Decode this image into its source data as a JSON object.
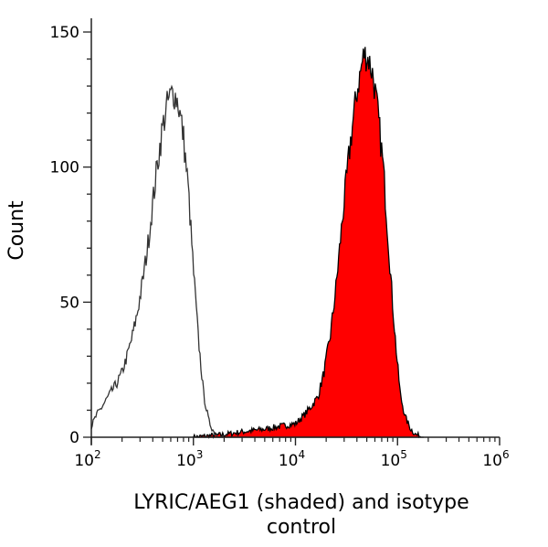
{
  "chart_data": {
    "type": "area",
    "title": "",
    "xlabel": "LYRIC/AEG1 (shaded) and isotype control",
    "ylabel": "Count",
    "xscale": "log",
    "xlim": [
      100,
      1000000
    ],
    "ylim": [
      0,
      150
    ],
    "x_ticks": [
      {
        "base": "10",
        "exp": "2"
      },
      {
        "base": "10",
        "exp": "3"
      },
      {
        "base": "10",
        "exp": "4"
      },
      {
        "base": "10",
        "exp": "5"
      },
      {
        "base": "10",
        "exp": "6"
      }
    ],
    "y_ticks": [
      "0",
      "50",
      "100",
      "150"
    ],
    "grid": false,
    "series": [
      {
        "style": "outline",
        "color": "#333333",
        "x": [
          100,
          112,
          126,
          141,
          158,
          178,
          200,
          224,
          251,
          282,
          316,
          355,
          398,
          447,
          501,
          562,
          631,
          708,
          794,
          891,
          1000,
          1122,
          1259,
          1413,
          1585,
          1778,
          2000
        ],
        "y": [
          4,
          8,
          11,
          14,
          17,
          20,
          24,
          30,
          37,
          46,
          57,
          70,
          86,
          102,
          115,
          124,
          128,
          124,
          112,
          92,
          62,
          36,
          16,
          6,
          2,
          0,
          0
        ]
      },
      {
        "style": "filled",
        "color": "#ff0000",
        "x": [
          1000,
          2000,
          3000,
          5000,
          7000,
          10000,
          12000,
          14000,
          16600,
          19000,
          22000,
          25000,
          29000,
          34700,
          40000,
          46800,
          52000,
          57500,
          64000,
          72400,
          80000,
          89100,
          98000,
          107000,
          120000,
          135000,
          150000,
          180000
        ],
        "y": [
          0,
          1,
          2,
          3,
          4,
          5,
          8,
          11,
          15,
          24,
          38,
          56,
          82,
          110,
          128,
          142,
          140,
          134,
          120,
          100,
          76,
          50,
          30,
          15,
          7,
          3,
          1,
          0
        ]
      }
    ]
  }
}
